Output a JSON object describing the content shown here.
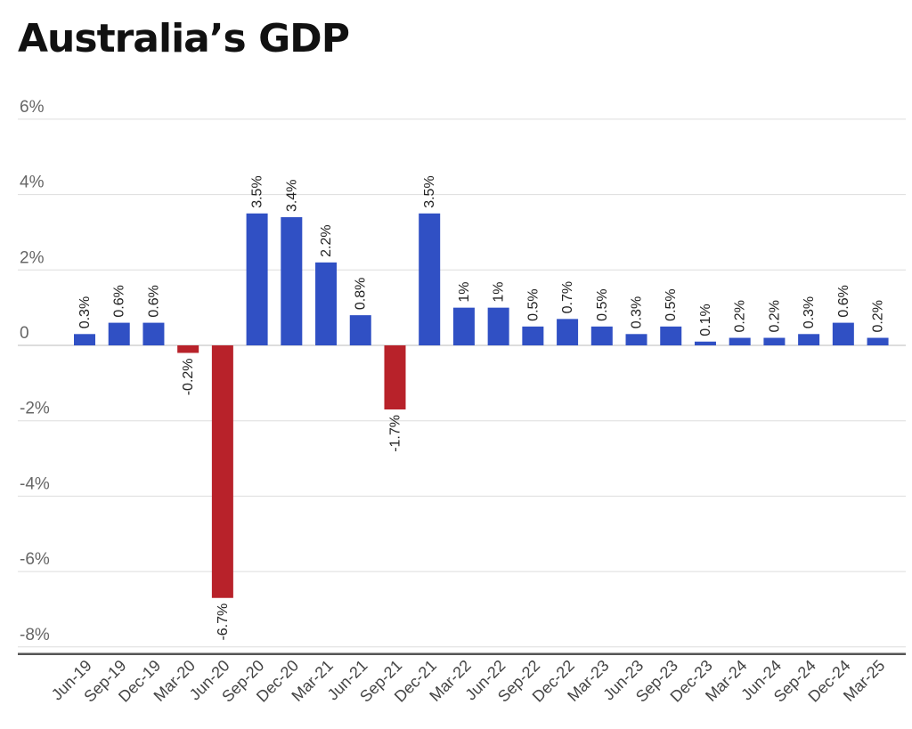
{
  "chart_data": {
    "type": "bar",
    "title": "Australia’s GDP",
    "categories": [
      "Jun-19",
      "Sep-19",
      "Dec-19",
      "Mar-20",
      "Jun-20",
      "Sep-20",
      "Dec-20",
      "Mar-21",
      "Jun-21",
      "Sep-21",
      "Dec-21",
      "Mar-22",
      "Jun-22",
      "Sep-22",
      "Dec-22",
      "Mar-23",
      "Jun-23",
      "Sep-23",
      "Dec-23",
      "Mar-24",
      "Jun-24",
      "Sep-24",
      "Dec-24",
      "Mar-25"
    ],
    "values": [
      0.3,
      0.6,
      0.6,
      -0.2,
      -6.7,
      3.5,
      3.4,
      2.2,
      0.8,
      -1.7,
      3.5,
      1,
      1,
      0.5,
      0.7,
      0.5,
      0.3,
      0.5,
      0.1,
      0.2,
      0.2,
      0.3,
      0.6,
      0.2
    ],
    "data_labels": [
      "0.3%",
      "0.6%",
      "0.6%",
      "-0.2%",
      "-6.7%",
      "3.5%",
      "3.4%",
      "2.2%",
      "0.8%",
      "-1.7%",
      "3.5%",
      "1%",
      "1%",
      "0.5%",
      "0.7%",
      "0.5%",
      "0.3%",
      "0.5%",
      "0.1%",
      "0.2%",
      "0.2%",
      "0.3%",
      "0.6%",
      "0.2%"
    ],
    "y_ticks": [
      6,
      4,
      2,
      0,
      -2,
      -4,
      -6,
      -8
    ],
    "y_tick_labels": [
      "6%",
      "4%",
      "2%",
      "0",
      "-2%",
      "-4%",
      "-6%",
      "-8%"
    ],
    "ylim": [
      -8,
      6
    ],
    "grid": true,
    "legend": "none",
    "xlabel": "",
    "ylabel": "",
    "colors": {
      "positive": "#3050c4",
      "negative": "#b8222a",
      "grid": "#dddddd",
      "baseline": "#555555"
    }
  }
}
